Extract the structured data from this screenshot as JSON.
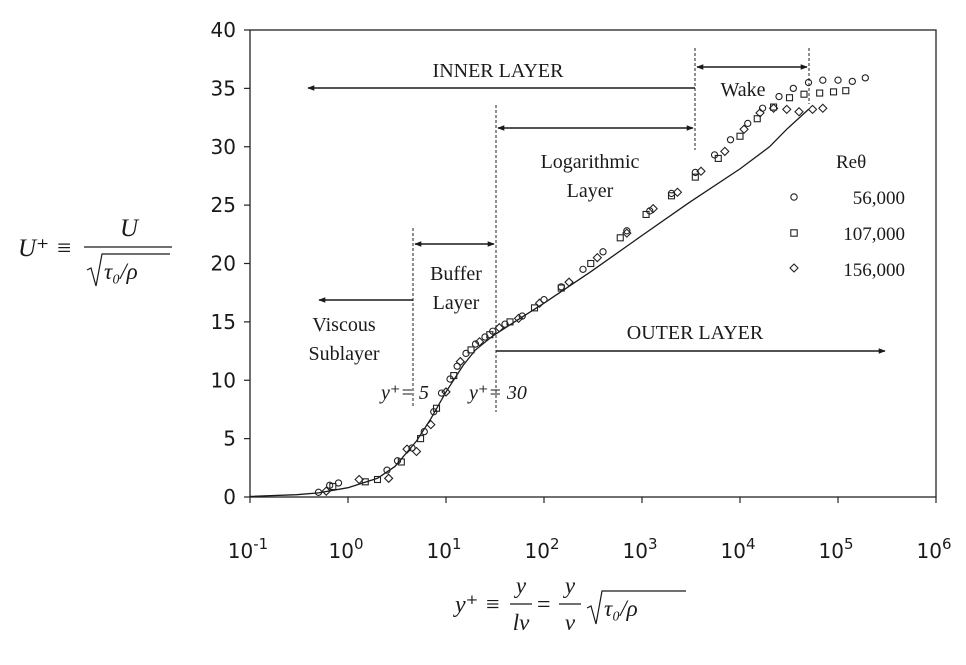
{
  "chart_data": {
    "type": "scatter",
    "xscale": "log",
    "xlim": [
      0.1,
      1000000
    ],
    "ylim": [
      0,
      40
    ],
    "xticks": [
      {
        "value": 0.1,
        "base": "10",
        "exp": "-1"
      },
      {
        "value": 1,
        "base": "10",
        "exp": "0"
      },
      {
        "value": 10,
        "base": "10",
        "exp": "1"
      },
      {
        "value": 100,
        "base": "10",
        "exp": "2"
      },
      {
        "value": 1000,
        "base": "10",
        "exp": "3"
      },
      {
        "value": 10000,
        "base": "10",
        "exp": "4"
      },
      {
        "value": 100000,
        "base": "10",
        "exp": "5"
      },
      {
        "value": 1000000,
        "base": "10",
        "exp": "6"
      }
    ],
    "yticks": [
      0,
      5,
      10,
      15,
      20,
      25,
      30,
      35,
      40
    ],
    "ylabel_lhs": "U⁺ ≡",
    "ylabel_num": "U",
    "ylabel_den": "τ₀/ρ",
    "xlabel_lhs": "y⁺ ≡",
    "xlabel_frac1_num": "y",
    "xlabel_frac1_den": "lν",
    "xlabel_eq": "=",
    "xlabel_frac2_num": "y",
    "xlabel_frac2_den": "ν",
    "xlabel_sqrt": "τ₀/ρ",
    "legend_title": "Reθ",
    "legend_placement": "right",
    "series": [
      {
        "name": "56,000",
        "marker": "circle",
        "points": [
          [
            0.5,
            0.4
          ],
          [
            0.65,
            1.0
          ],
          [
            0.8,
            1.2
          ],
          [
            2.5,
            2.3
          ],
          [
            3.2,
            3.1
          ],
          [
            4.5,
            4.2
          ],
          [
            6,
            5.6
          ],
          [
            7.5,
            7.3
          ],
          [
            9,
            8.9
          ],
          [
            11,
            10.1
          ],
          [
            13,
            11.2
          ],
          [
            16,
            12.3
          ],
          [
            20,
            13.1
          ],
          [
            25,
            13.7
          ],
          [
            30,
            14.2
          ],
          [
            40,
            14.8
          ],
          [
            60,
            15.5
          ],
          [
            100,
            16.9
          ],
          [
            150,
            18.0
          ],
          [
            250,
            19.5
          ],
          [
            400,
            21.0
          ],
          [
            700,
            22.8
          ],
          [
            1200,
            24.5
          ],
          [
            2000,
            26.0
          ],
          [
            3500,
            27.8
          ],
          [
            5500,
            29.3
          ],
          [
            8000,
            30.6
          ],
          [
            12000,
            32.0
          ],
          [
            17000,
            33.3
          ],
          [
            25000,
            34.3
          ],
          [
            35000,
            35.0
          ],
          [
            50000,
            35.5
          ],
          [
            70000,
            35.7
          ],
          [
            100000,
            35.7
          ],
          [
            140000,
            35.6
          ],
          [
            190000,
            35.9
          ]
        ]
      },
      {
        "name": "107,000",
        "marker": "square",
        "points": [
          [
            0.7,
            0.9
          ],
          [
            1.5,
            1.3
          ],
          [
            2,
            1.5
          ],
          [
            3.5,
            3.0
          ],
          [
            5.5,
            5.0
          ],
          [
            8,
            7.6
          ],
          [
            12,
            10.4
          ],
          [
            18,
            12.6
          ],
          [
            28,
            13.9
          ],
          [
            45,
            15.0
          ],
          [
            80,
            16.2
          ],
          [
            150,
            17.9
          ],
          [
            300,
            20.0
          ],
          [
            600,
            22.2
          ],
          [
            1100,
            24.2
          ],
          [
            2000,
            25.8
          ],
          [
            3500,
            27.4
          ],
          [
            6000,
            29.0
          ],
          [
            10000,
            30.9
          ],
          [
            15000,
            32.4
          ],
          [
            22000,
            33.4
          ],
          [
            32000,
            34.2
          ],
          [
            45000,
            34.5
          ],
          [
            65000,
            34.6
          ],
          [
            90000,
            34.7
          ],
          [
            120000,
            34.8
          ]
        ]
      },
      {
        "name": "156,000",
        "marker": "diamond",
        "points": [
          [
            0.6,
            0.5
          ],
          [
            1.3,
            1.5
          ],
          [
            2.6,
            1.6
          ],
          [
            4,
            4.1
          ],
          [
            5,
            3.9
          ],
          [
            7,
            6.2
          ],
          [
            10,
            9.0
          ],
          [
            14,
            11.6
          ],
          [
            22,
            13.3
          ],
          [
            35,
            14.5
          ],
          [
            55,
            15.3
          ],
          [
            90,
            16.6
          ],
          [
            180,
            18.4
          ],
          [
            350,
            20.5
          ],
          [
            700,
            22.6
          ],
          [
            1300,
            24.7
          ],
          [
            2300,
            26.1
          ],
          [
            4000,
            27.9
          ],
          [
            7000,
            29.6
          ],
          [
            11000,
            31.5
          ],
          [
            16000,
            32.9
          ],
          [
            22000,
            33.3
          ],
          [
            30000,
            33.2
          ],
          [
            40000,
            33.0
          ],
          [
            55000,
            33.2
          ],
          [
            70000,
            33.3
          ]
        ]
      }
    ],
    "reference_curve": {
      "name": "",
      "x": [
        0.1,
        0.3,
        0.5,
        1,
        2,
        3,
        5,
        7,
        10,
        15,
        20,
        30,
        50,
        100,
        300,
        1000,
        3000,
        10000,
        20000,
        30000,
        50000
      ],
      "y": [
        0.05,
        0.2,
        0.35,
        0.8,
        1.6,
        2.6,
        4.8,
        6.7,
        9.0,
        11.3,
        12.6,
        13.8,
        15.0,
        16.6,
        19.3,
        22.4,
        25.2,
        28.1,
        30.0,
        31.5,
        33.2
      ]
    },
    "annotations": {
      "inner_layer": "INNER LAYER",
      "wake": "Wake",
      "logarithmic_line1": "Logarithmic",
      "logarithmic_line2": "Layer",
      "buffer_line1": "Buffer",
      "buffer_line2": "Layer",
      "viscous_line1": "Viscous",
      "viscous_line2": "Sublayer",
      "outer_layer": "OUTER LAYER",
      "yplus5": "y⁺= 5",
      "yplus30": "y⁺= 30"
    }
  }
}
